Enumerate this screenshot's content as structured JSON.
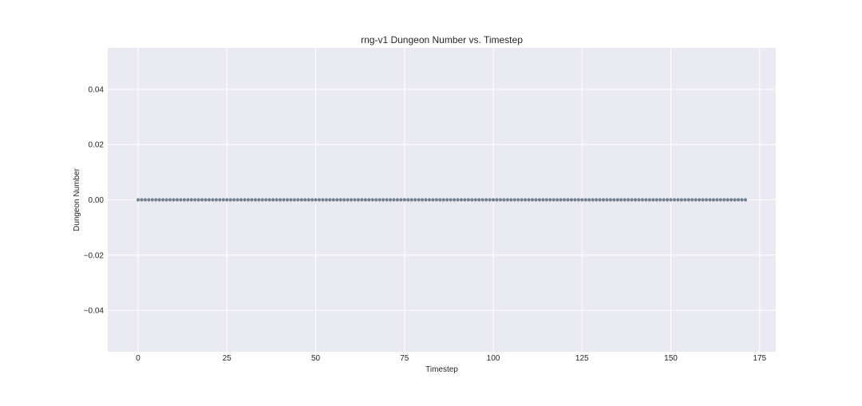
{
  "chart_data": {
    "type": "scatter",
    "title": "rng-v1 Dungeon Number vs. Timestep",
    "xlabel": "Timestep",
    "ylabel": "Dungeon Number",
    "xlim": [
      -8.55,
      179.55
    ],
    "ylim": [
      -0.055,
      0.055
    ],
    "xticks": [
      0,
      25,
      50,
      75,
      100,
      125,
      150,
      175
    ],
    "xtick_labels": [
      "0",
      "25",
      "50",
      "75",
      "100",
      "125",
      "150",
      "175"
    ],
    "yticks": [
      -0.04,
      -0.02,
      0.0,
      0.02,
      0.04
    ],
    "ytick_labels": [
      "−0.04",
      "−0.02",
      "0.00",
      "0.02",
      "0.04"
    ],
    "grid": true,
    "x_range": [
      0,
      171
    ],
    "y_constant": 0.0,
    "point_count": 172,
    "colors": {
      "plot_background": "#eaeaf2",
      "grid": "#ffffff",
      "marker": "#708090",
      "text": "#262626"
    }
  }
}
